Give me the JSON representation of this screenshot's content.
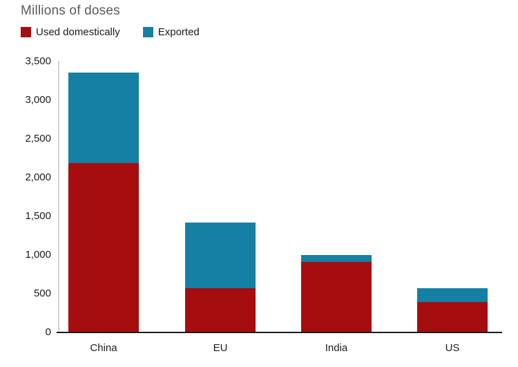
{
  "chart": {
    "title": "Millions of doses"
  },
  "chart_data": {
    "type": "bar",
    "stacked": true,
    "title": "Millions of doses",
    "categories": [
      "China",
      "EU",
      "India",
      "US"
    ],
    "series": [
      {
        "name": "Used domestically",
        "color": "#a50d0f",
        "values": [
          2190,
          570,
          910,
          390
        ]
      },
      {
        "name": "Exported",
        "color": "#1580a3",
        "values": [
          1170,
          850,
          90,
          180
        ]
      }
    ],
    "totals": [
      3360,
      1420,
      1000,
      570
    ],
    "ylabel": "",
    "xlabel": "",
    "ylim": [
      0,
      3500
    ],
    "ytick_step": 500,
    "ytick_labels": [
      "0",
      "500",
      "1,000",
      "1,500",
      "2,000",
      "2,500",
      "3,000",
      "3,500"
    ],
    "grid": false,
    "legend_position": "top-left",
    "axis_color": "#1a1a1a",
    "gridline_color": "#d2d2d2"
  }
}
